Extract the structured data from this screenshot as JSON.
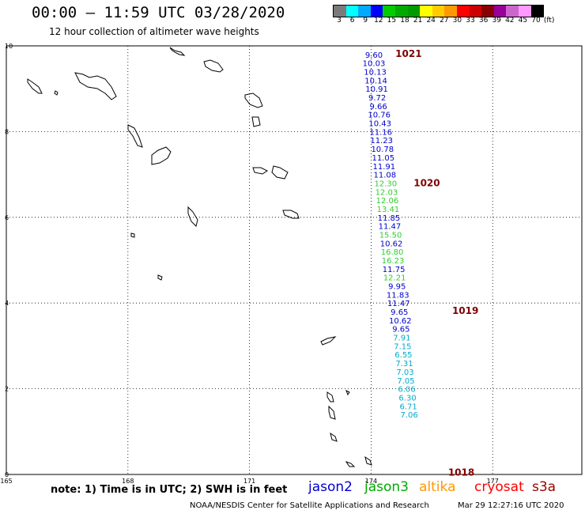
{
  "header": {
    "title": "00:00 – 11:59 UTC 03/28/2020",
    "subtitle": "12 hour collection of altimeter wave heights"
  },
  "colorbar": {
    "colors": [
      "#7a7a7a",
      "#00ffff",
      "#00aaff",
      "#0000ff",
      "#00cc00",
      "#00aa00",
      "#009900",
      "#ffff00",
      "#ffcc00",
      "#ff9900",
      "#ff0000",
      "#cc0000",
      "#880000",
      "#990099",
      "#cc66cc",
      "#ff99ff",
      "#000000"
    ],
    "labels": [
      "3",
      "6",
      "9",
      "12",
      "15",
      "18",
      "21",
      "24",
      "27",
      "30",
      "33",
      "36",
      "39",
      "42",
      "45",
      "70",
      "(ft)"
    ]
  },
  "axes": {
    "x_ticks": [
      "165",
      "168",
      "171",
      "174",
      "177"
    ],
    "y_ticks": [
      "0",
      "2",
      "4",
      "6",
      "8",
      "10"
    ]
  },
  "observations": [
    {
      "lon": 174.07,
      "lat": 9.8,
      "v": "9.60",
      "sat": "jason2"
    },
    {
      "lon": 174.07,
      "lat": 9.6,
      "v": "10.03",
      "sat": "jason2"
    },
    {
      "lon": 174.1,
      "lat": 9.4,
      "v": "10.13",
      "sat": "jason2"
    },
    {
      "lon": 174.12,
      "lat": 9.2,
      "v": "10.14",
      "sat": "jason2"
    },
    {
      "lon": 174.14,
      "lat": 9.0,
      "v": "10.91",
      "sat": "jason2"
    },
    {
      "lon": 174.15,
      "lat": 8.8,
      "v": "9.72",
      "sat": "jason2"
    },
    {
      "lon": 174.18,
      "lat": 8.6,
      "v": "9.66",
      "sat": "jason2"
    },
    {
      "lon": 174.2,
      "lat": 8.4,
      "v": "10.76",
      "sat": "jason2"
    },
    {
      "lon": 174.22,
      "lat": 8.2,
      "v": "10.43",
      "sat": "jason2"
    },
    {
      "lon": 174.24,
      "lat": 8.0,
      "v": "11.16",
      "sat": "jason2"
    },
    {
      "lon": 174.26,
      "lat": 7.8,
      "v": "11.23",
      "sat": "jason2"
    },
    {
      "lon": 174.28,
      "lat": 7.6,
      "v": "10.78",
      "sat": "jason2"
    },
    {
      "lon": 174.3,
      "lat": 7.4,
      "v": "11.05",
      "sat": "jason2"
    },
    {
      "lon": 174.32,
      "lat": 7.2,
      "v": "11.91",
      "sat": "jason2"
    },
    {
      "lon": 174.34,
      "lat": 7.0,
      "v": "11.08",
      "sat": "jason2"
    },
    {
      "lon": 174.36,
      "lat": 6.8,
      "v": "12.30",
      "sat": "jason3"
    },
    {
      "lon": 174.38,
      "lat": 6.6,
      "v": "12.03",
      "sat": "jason3"
    },
    {
      "lon": 174.4,
      "lat": 6.4,
      "v": "12.06",
      "sat": "jason3"
    },
    {
      "lon": 174.42,
      "lat": 6.2,
      "v": "13.41",
      "sat": "jason3"
    },
    {
      "lon": 174.44,
      "lat": 6.0,
      "v": "11.85",
      "sat": "jason2"
    },
    {
      "lon": 174.46,
      "lat": 5.8,
      "v": "11.47",
      "sat": "jason2"
    },
    {
      "lon": 174.48,
      "lat": 5.6,
      "v": "15.50",
      "sat": "jason3"
    },
    {
      "lon": 174.5,
      "lat": 5.4,
      "v": "10.62",
      "sat": "jason2"
    },
    {
      "lon": 174.52,
      "lat": 5.2,
      "v": "16.80",
      "sat": "jason3"
    },
    {
      "lon": 174.54,
      "lat": 5.0,
      "v": "16.23",
      "sat": "jason3"
    },
    {
      "lon": 174.56,
      "lat": 4.8,
      "v": "11.75",
      "sat": "jason2"
    },
    {
      "lon": 174.58,
      "lat": 4.6,
      "v": "12.21",
      "sat": "jason3"
    },
    {
      "lon": 174.64,
      "lat": 4.4,
      "v": "9.95",
      "sat": "jason2"
    },
    {
      "lon": 174.66,
      "lat": 4.2,
      "v": "11.83",
      "sat": "jason2"
    },
    {
      "lon": 174.68,
      "lat": 4.0,
      "v": "11.47",
      "sat": "jason2"
    },
    {
      "lon": 174.7,
      "lat": 3.8,
      "v": "9.65",
      "sat": "jason2"
    },
    {
      "lon": 174.72,
      "lat": 3.6,
      "v": "10.62",
      "sat": "jason2"
    },
    {
      "lon": 174.74,
      "lat": 3.4,
      "v": "9.65",
      "sat": "jason2"
    },
    {
      "lon": 174.76,
      "lat": 3.2,
      "v": "7.91",
      "sat": "jason2-cyan"
    },
    {
      "lon": 174.78,
      "lat": 3.0,
      "v": "7.15",
      "sat": "jason2-cyan"
    },
    {
      "lon": 174.8,
      "lat": 2.8,
      "v": "6.55",
      "sat": "jason2-cyan"
    },
    {
      "lon": 174.82,
      "lat": 2.6,
      "v": "7.31",
      "sat": "jason2-cyan"
    },
    {
      "lon": 174.84,
      "lat": 2.4,
      "v": "7.03",
      "sat": "jason2-cyan"
    },
    {
      "lon": 174.86,
      "lat": 2.2,
      "v": "7.05",
      "sat": "jason2-cyan"
    },
    {
      "lon": 174.88,
      "lat": 2.0,
      "v": "6.06",
      "sat": "jason2-cyan"
    },
    {
      "lon": 174.9,
      "lat": 1.8,
      "v": "6.30",
      "sat": "jason2-cyan"
    },
    {
      "lon": 174.92,
      "lat": 1.6,
      "v": "6.71",
      "sat": "jason2-cyan"
    },
    {
      "lon": 174.94,
      "lat": 1.4,
      "v": "7.06",
      "sat": "jason2-cyan"
    }
  ],
  "pressure_labels": [
    {
      "text": "1021"
    },
    {
      "text": "1020"
    },
    {
      "text": "1019"
    },
    {
      "text": "1018"
    }
  ],
  "footer": {
    "note": "note: 1) Time is in UTC; 2) SWH is in feet",
    "satellites": [
      {
        "name": "jason2",
        "color": "#0000cc"
      },
      {
        "name": "jason3",
        "color": "#00aa00"
      },
      {
        "name": "altika",
        "color": "#ff9900"
      },
      {
        "name": "cryosat",
        "color": "#ff0000"
      },
      {
        "name": "s3a",
        "color": "#990000"
      }
    ],
    "credit": "NOAA/NESDIS Center for Satellite Applications and Research",
    "timestamp": "Mar 29 12:27:16 UTC 2020"
  },
  "colors": {
    "jason2": "#0000cc",
    "jason3": "#33cc33",
    "jason2-cyan": "#00aacc",
    "pressure": "#800000",
    "grid": "#000000"
  }
}
